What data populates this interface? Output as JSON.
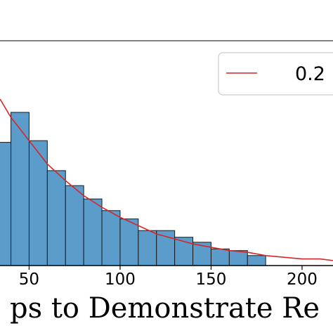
{
  "chart_data": {
    "type": "bar",
    "xlabel": "ps to Demonstrate Re",
    "ylabel": "",
    "title": "",
    "xlim": [
      34,
      217
    ],
    "ylim": [
      0,
      0.0135
    ],
    "x_ticks": [
      {
        "value": 50,
        "label": "50"
      },
      {
        "value": 100,
        "label": "100"
      },
      {
        "value": 150,
        "label": "150"
      },
      {
        "value": 200,
        "label": "200"
      }
    ],
    "bar_color": "#5b9ccb",
    "bin_width": 10,
    "bins": [
      {
        "start": 30,
        "value": 0.0074
      },
      {
        "start": 40,
        "value": 0.0092
      },
      {
        "start": 50,
        "value": 0.0075
      },
      {
        "start": 60,
        "value": 0.0057
      },
      {
        "start": 70,
        "value": 0.0048
      },
      {
        "start": 80,
        "value": 0.004
      },
      {
        "start": 90,
        "value": 0.0033
      },
      {
        "start": 100,
        "value": 0.0028
      },
      {
        "start": 110,
        "value": 0.0021
      },
      {
        "start": 120,
        "value": 0.0021
      },
      {
        "start": 130,
        "value": 0.0017
      },
      {
        "start": 140,
        "value": 0.0014
      },
      {
        "start": 150,
        "value": 0.001
      },
      {
        "start": 160,
        "value": 0.0009
      },
      {
        "start": 170,
        "value": 0.0006
      }
    ],
    "fit_curve": {
      "name": "0.2",
      "color": "#d62728",
      "points": [
        {
          "x": 34,
          "y": 0.01
        },
        {
          "x": 40,
          "y": 0.0089
        },
        {
          "x": 50,
          "y": 0.0075
        },
        {
          "x": 60,
          "y": 0.0061
        },
        {
          "x": 70,
          "y": 0.0051
        },
        {
          "x": 80,
          "y": 0.0042
        },
        {
          "x": 90,
          "y": 0.0035
        },
        {
          "x": 100,
          "y": 0.0029
        },
        {
          "x": 110,
          "y": 0.0024
        },
        {
          "x": 120,
          "y": 0.0019
        },
        {
          "x": 130,
          "y": 0.0016
        },
        {
          "x": 140,
          "y": 0.0013
        },
        {
          "x": 150,
          "y": 0.0011
        },
        {
          "x": 160,
          "y": 0.0009
        },
        {
          "x": 170,
          "y": 0.0008
        },
        {
          "x": 180,
          "y": 0.0006
        },
        {
          "x": 190,
          "y": 0.0005
        },
        {
          "x": 200,
          "y": 0.0004
        },
        {
          "x": 210,
          "y": 0.0004
        },
        {
          "x": 217,
          "y": 0.0003
        }
      ]
    },
    "legend": {
      "placement": "top-right",
      "entries": [
        {
          "label": "0.2",
          "color": "#d62728"
        }
      ]
    },
    "grid": false
  }
}
